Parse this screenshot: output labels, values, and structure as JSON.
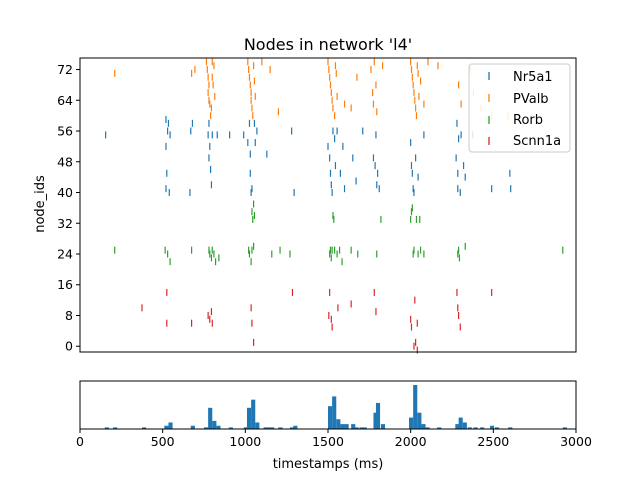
{
  "chart_data": [
    {
      "type": "scatter",
      "title": "Nodes in network 'l4'",
      "xlabel": "",
      "ylabel": "node_ids",
      "xlim": [
        0,
        3000
      ],
      "ylim": [
        -1.5,
        75
      ],
      "yticks": [
        "0",
        "8",
        "16",
        "24",
        "32",
        "40",
        "48",
        "56",
        "64",
        "72"
      ],
      "grid": false,
      "marker": "|",
      "legend_position": "top-right",
      "series": [
        {
          "name": "Nr5a1",
          "color": "#1f77b4",
          "points": [
            [
              155,
              55
            ],
            [
              520,
              59
            ],
            [
              535,
              58
            ],
            [
              530,
              56
            ],
            [
              545,
              55
            ],
            [
              520,
              52
            ],
            [
              525,
              45
            ],
            [
              520,
              41
            ],
            [
              540,
              40
            ],
            [
              670,
              56
            ],
            [
              680,
              58
            ],
            [
              665,
              40
            ],
            [
              775,
              55
            ],
            [
              780,
              58
            ],
            [
              785,
              52
            ],
            [
              780,
              49
            ],
            [
              790,
              46
            ],
            [
              795,
              42
            ],
            [
              800,
              55
            ],
            [
              830,
              55
            ],
            [
              905,
              55
            ],
            [
              990,
              55
            ],
            [
              1015,
              53
            ],
            [
              1025,
              58
            ],
            [
              1030,
              50
            ],
            [
              1030,
              45
            ],
            [
              1035,
              40
            ],
            [
              1040,
              41
            ],
            [
              1055,
              58
            ],
            [
              1060,
              53
            ],
            [
              1070,
              56
            ],
            [
              1130,
              50
            ],
            [
              1280,
              56
            ],
            [
              1295,
              40
            ],
            [
              1500,
              52
            ],
            [
              1510,
              49
            ],
            [
              1515,
              45
            ],
            [
              1520,
              42
            ],
            [
              1525,
              40
            ],
            [
              1530,
              56
            ],
            [
              1540,
              54
            ],
            [
              1545,
              47
            ],
            [
              1555,
              56
            ],
            [
              1575,
              45
            ],
            [
              1590,
              52
            ],
            [
              1600,
              41
            ],
            [
              1650,
              49
            ],
            [
              1670,
              43
            ],
            [
              1710,
              56
            ],
            [
              1775,
              49
            ],
            [
              1785,
              47
            ],
            [
              1800,
              45
            ],
            [
              1795,
              42
            ],
            [
              1810,
              41
            ],
            [
              1790,
              55
            ],
            [
              2000,
              53
            ],
            [
              2005,
              47
            ],
            [
              2010,
              45
            ],
            [
              2015,
              41
            ],
            [
              2020,
              40
            ],
            [
              2030,
              49
            ],
            [
              2045,
              44
            ],
            [
              2080,
              55
            ],
            [
              2280,
              58
            ],
            [
              2290,
              54
            ],
            [
              2275,
              49
            ],
            [
              2285,
              45
            ],
            [
              2285,
              41
            ],
            [
              2300,
              40
            ],
            [
              2305,
              55
            ],
            [
              2320,
              47
            ],
            [
              2330,
              44
            ],
            [
              2375,
              55
            ],
            [
              2490,
              41
            ],
            [
              2600,
              45
            ],
            [
              2605,
              41
            ]
          ]
        },
        {
          "name": "PValb",
          "color": "#ff7f0e",
          "points": [
            [
              210,
              71
            ],
            [
              675,
              71
            ],
            [
              695,
              72
            ],
            [
              765,
              74
            ],
            [
              770,
              72
            ],
            [
              775,
              70
            ],
            [
              780,
              68
            ],
            [
              775,
              66
            ],
            [
              780,
              64
            ],
            [
              785,
              63
            ],
            [
              790,
              60
            ],
            [
              795,
              62
            ],
            [
              800,
              74
            ],
            [
              800,
              70
            ],
            [
              805,
              68
            ],
            [
              810,
              73
            ],
            [
              815,
              65
            ],
            [
              1015,
              74
            ],
            [
              1020,
              72
            ],
            [
              1025,
              70
            ],
            [
              1030,
              68
            ],
            [
              1035,
              66
            ],
            [
              1035,
              64
            ],
            [
              1040,
              62
            ],
            [
              1045,
              60
            ],
            [
              1050,
              73
            ],
            [
              1055,
              69
            ],
            [
              1060,
              65
            ],
            [
              1100,
              74
            ],
            [
              1150,
              72
            ],
            [
              1200,
              61
            ],
            [
              1500,
              74
            ],
            [
              1505,
              72
            ],
            [
              1510,
              70
            ],
            [
              1515,
              68
            ],
            [
              1520,
              66
            ],
            [
              1525,
              64
            ],
            [
              1530,
              62
            ],
            [
              1540,
              60
            ],
            [
              1545,
              73
            ],
            [
              1550,
              71
            ],
            [
              1555,
              65
            ],
            [
              1600,
              63
            ],
            [
              1640,
              62
            ],
            [
              1675,
              70
            ],
            [
              1760,
              72
            ],
            [
              1770,
              66
            ],
            [
              1775,
              63
            ],
            [
              1780,
              74
            ],
            [
              1790,
              68
            ],
            [
              1795,
              61
            ],
            [
              1830,
              73
            ],
            [
              2000,
              74
            ],
            [
              2005,
              72
            ],
            [
              2010,
              70
            ],
            [
              2015,
              68
            ],
            [
              2020,
              66
            ],
            [
              2025,
              64
            ],
            [
              2030,
              62
            ],
            [
              2035,
              60
            ],
            [
              2040,
              73
            ],
            [
              2045,
              71
            ],
            [
              2050,
              65
            ],
            [
              2060,
              69
            ],
            [
              2080,
              63
            ],
            [
              2105,
              74
            ],
            [
              2165,
              73
            ],
            [
              2290,
              68
            ],
            [
              2305,
              63
            ],
            [
              2360,
              72
            ],
            [
              2380,
              66
            ],
            [
              2425,
              62
            ],
            [
              2490,
              60
            ],
            [
              2590,
              60
            ]
          ]
        },
        {
          "name": "Rorb",
          "color": "#2ca02c",
          "points": [
            [
              210,
              25
            ],
            [
              515,
              25
            ],
            [
              530,
              24
            ],
            [
              545,
              22
            ],
            [
              675,
              25
            ],
            [
              780,
              25
            ],
            [
              785,
              24
            ],
            [
              795,
              23
            ],
            [
              800,
              25
            ],
            [
              810,
              24
            ],
            [
              820,
              22
            ],
            [
              840,
              23
            ],
            [
              1020,
              25
            ],
            [
              1025,
              24
            ],
            [
              1035,
              22
            ],
            [
              1040,
              25
            ],
            [
              1050,
              26
            ],
            [
              1040,
              35
            ],
            [
              1045,
              33
            ],
            [
              1050,
              37
            ],
            [
              1055,
              34
            ],
            [
              1160,
              24
            ],
            [
              1210,
              25
            ],
            [
              1270,
              24
            ],
            [
              1510,
              24
            ],
            [
              1515,
              25
            ],
            [
              1520,
              23
            ],
            [
              1525,
              25
            ],
            [
              1530,
              34
            ],
            [
              1535,
              33
            ],
            [
              1540,
              25
            ],
            [
              1555,
              24
            ],
            [
              1570,
              25
            ],
            [
              1585,
              22
            ],
            [
              1640,
              25
            ],
            [
              1680,
              24
            ],
            [
              1795,
              24
            ],
            [
              1820,
              33
            ],
            [
              2000,
              33
            ],
            [
              2005,
              35
            ],
            [
              2010,
              36
            ],
            [
              2015,
              24
            ],
            [
              2020,
              25
            ],
            [
              2035,
              33
            ],
            [
              2045,
              24
            ],
            [
              2055,
              33
            ],
            [
              2060,
              25
            ],
            [
              2080,
              24
            ],
            [
              2285,
              24
            ],
            [
              2290,
              25
            ],
            [
              2295,
              23
            ],
            [
              2330,
              26
            ],
            [
              2920,
              25
            ]
          ]
        },
        {
          "name": "Scnn1a",
          "color": "#d62728",
          "points": [
            [
              375,
              10
            ],
            [
              525,
              14
            ],
            [
              525,
              6
            ],
            [
              675,
              6
            ],
            [
              775,
              8
            ],
            [
              785,
              7
            ],
            [
              795,
              9
            ],
            [
              800,
              6
            ],
            [
              1035,
              10
            ],
            [
              1040,
              6
            ],
            [
              1050,
              1
            ],
            [
              1285,
              14
            ],
            [
              1510,
              14
            ],
            [
              1505,
              8
            ],
            [
              1520,
              7
            ],
            [
              1525,
              5
            ],
            [
              1560,
              10
            ],
            [
              1640,
              11
            ],
            [
              1780,
              14
            ],
            [
              1790,
              9
            ],
            [
              2000,
              7
            ],
            [
              2005,
              5
            ],
            [
              2020,
              0
            ],
            [
              2030,
              1
            ],
            [
              2040,
              -1
            ],
            [
              2025,
              12
            ],
            [
              2040,
              6
            ],
            [
              2280,
              14
            ],
            [
              2285,
              10
            ],
            [
              2290,
              8
            ],
            [
              2300,
              5
            ],
            [
              2490,
              14
            ]
          ]
        }
      ]
    },
    {
      "type": "bar",
      "title": "",
      "xlabel": "timestamps (ms)",
      "ylabel": "",
      "xlim": [
        0,
        3000
      ],
      "xticks": [
        "0",
        "500",
        "1000",
        "1500",
        "2000",
        "2500",
        "3000"
      ],
      "color": "#1f77b4",
      "bin_width_ms": 25,
      "bins": [
        [
          150,
          1
        ],
        [
          200,
          1
        ],
        [
          375,
          1
        ],
        [
          510,
          2
        ],
        [
          535,
          4
        ],
        [
          670,
          2
        ],
        [
          750,
          1
        ],
        [
          775,
          13
        ],
        [
          800,
          5
        ],
        [
          825,
          2
        ],
        [
          900,
          1
        ],
        [
          990,
          1
        ],
        [
          1010,
          13
        ],
        [
          1035,
          18
        ],
        [
          1060,
          4
        ],
        [
          1110,
          1
        ],
        [
          1130,
          1
        ],
        [
          1150,
          1
        ],
        [
          1200,
          1
        ],
        [
          1270,
          1
        ],
        [
          1290,
          2
        ],
        [
          1500,
          14
        ],
        [
          1525,
          20
        ],
        [
          1550,
          6
        ],
        [
          1575,
          3
        ],
        [
          1600,
          3
        ],
        [
          1640,
          3
        ],
        [
          1660,
          1
        ],
        [
          1690,
          1
        ],
        [
          1710,
          1
        ],
        [
          1775,
          10
        ],
        [
          1790,
          16
        ],
        [
          1820,
          3
        ],
        [
          1990,
          7
        ],
        [
          2015,
          27
        ],
        [
          2040,
          10
        ],
        [
          2065,
          3
        ],
        [
          2090,
          1
        ],
        [
          2160,
          1
        ],
        [
          2270,
          3
        ],
        [
          2290,
          7
        ],
        [
          2315,
          4
        ],
        [
          2345,
          1
        ],
        [
          2380,
          1
        ],
        [
          2420,
          1
        ],
        [
          2480,
          2
        ],
        [
          2510,
          1
        ],
        [
          2590,
          1
        ],
        [
          2920,
          1
        ]
      ]
    }
  ]
}
